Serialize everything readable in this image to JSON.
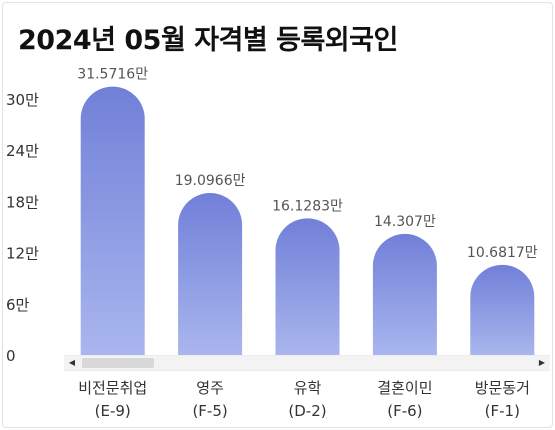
{
  "chart_data": {
    "type": "bar",
    "title": "2024년 05월 자격별 등록외국인",
    "categories": [
      {
        "name": "비전문취업",
        "code": "(E-9)"
      },
      {
        "name": "영주",
        "code": "(F-5)"
      },
      {
        "name": "유학",
        "code": "(D-2)"
      },
      {
        "name": "결혼이민",
        "code": "(F-6)"
      },
      {
        "name": "방문동거",
        "code": "(F-1)"
      }
    ],
    "values": [
      31.5716,
      19.0966,
      16.1283,
      14.307,
      10.6817
    ],
    "value_labels": [
      "31.5716만",
      "19.0966만",
      "16.1283만",
      "14.307만",
      "10.6817만"
    ],
    "y_ticks": [
      {
        "value": 0,
        "label": "0"
      },
      {
        "value": 6,
        "label": "6만"
      },
      {
        "value": 12,
        "label": "12만"
      },
      {
        "value": 18,
        "label": "18만"
      },
      {
        "value": 24,
        "label": "24만"
      },
      {
        "value": 30,
        "label": "30만"
      }
    ],
    "ylim": [
      0,
      30
    ],
    "grid": false,
    "colors": {
      "bar_top": "#7180d8",
      "bar_bottom": "#a9b6ee"
    }
  },
  "scrollbar": {
    "left_arrow": "◀",
    "right_arrow": "▶"
  }
}
